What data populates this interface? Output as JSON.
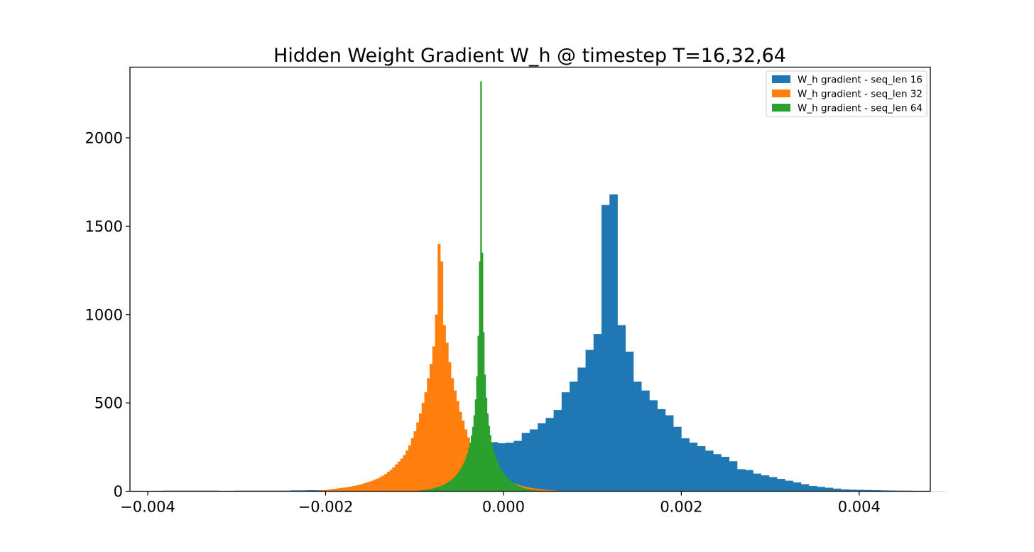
{
  "chart_data": {
    "type": "histogram",
    "title": "Hidden Weight Gradient W_h @ timestep T=16,32,64",
    "xlabel": "",
    "ylabel": "",
    "xlim": [
      -0.0042,
      0.0048
    ],
    "ylim": [
      0,
      2400
    ],
    "xticks": [
      -0.004,
      -0.002,
      0.0,
      0.002,
      0.004
    ],
    "xtick_labels": [
      "−0.004",
      "−0.002",
      "0.000",
      "0.002",
      "0.004"
    ],
    "yticks": [
      0,
      500,
      1000,
      1500,
      2000
    ],
    "ytick_labels": [
      "0",
      "500",
      "1000",
      "1500",
      "2000"
    ],
    "grid": false,
    "legend_position": "top-right",
    "series": [
      {
        "name": "W_h gradient - seq_len 16",
        "color": "#1f77b4",
        "bin_start": -0.0041,
        "bin_width": 8.97e-05,
        "counts": [
          1,
          0,
          1,
          3,
          3,
          3,
          3,
          3,
          3,
          3,
          2,
          2,
          3,
          3,
          3,
          3,
          3,
          3,
          3,
          5,
          5,
          6,
          6,
          6,
          7,
          9,
          12,
          15,
          20,
          25,
          30,
          38,
          45,
          55,
          65,
          75,
          82,
          87,
          100,
          140,
          160,
          140,
          180,
          225,
          278,
          272,
          275,
          285,
          330,
          350,
          385,
          415,
          460,
          560,
          620,
          700,
          800,
          890,
          1620,
          1680,
          940,
          790,
          620,
          570,
          515,
          465,
          430,
          365,
          300,
          275,
          255,
          230,
          210,
          195,
          170,
          125,
          120,
          100,
          90,
          80,
          70,
          60,
          50,
          40,
          30,
          25,
          20,
          15,
          11,
          9,
          8,
          7,
          6,
          5,
          4,
          3,
          3,
          2,
          2,
          1,
          1
        ]
      },
      {
        "name": "W_h gradient - seq_len 32",
        "color": "#ff7f0e",
        "bin_start": -0.00215,
        "bin_width": 3e-05,
        "counts": [
          2,
          3,
          4,
          5,
          6,
          8,
          10,
          12,
          14,
          16,
          18,
          20,
          22,
          24,
          27,
          30,
          33,
          36,
          40,
          45,
          50,
          55,
          60,
          66,
          72,
          80,
          88,
          98,
          110,
          122,
          136,
          152,
          168,
          185,
          205,
          230,
          260,
          300,
          340,
          390,
          440,
          500,
          560,
          640,
          720,
          820,
          1000,
          1400,
          1300,
          940,
          840,
          730,
          640,
          570,
          510,
          450,
          400,
          350,
          305,
          268,
          236,
          210,
          188,
          168,
          150,
          134,
          120,
          108,
          97,
          87,
          78,
          70,
          63,
          56,
          50,
          45,
          40,
          35,
          31,
          27,
          24,
          21,
          18,
          16,
          14,
          12,
          10,
          8,
          7,
          6,
          5,
          4
        ]
      },
      {
        "name": "W_h gradient - seq_len 64",
        "color": "#2ca02c",
        "bin_start": -0.00096,
        "bin_width": 1.52e-05,
        "counts": [
          3,
          4,
          5,
          6,
          7,
          8,
          9,
          10,
          12,
          13,
          15,
          17,
          19,
          21,
          23,
          26,
          29,
          32,
          35,
          39,
          43,
          48,
          53,
          58,
          64,
          70,
          77,
          85,
          94,
          104,
          115,
          127,
          140,
          155,
          172,
          192,
          215,
          242,
          275,
          315,
          365,
          430,
          520,
          650,
          880,
          1300,
          2320,
          1350,
          900,
          660,
          530,
          440,
          370,
          318,
          276,
          242,
          214,
          190,
          170,
          152,
          136,
          122,
          110,
          99,
          89,
          80,
          72,
          65,
          58,
          52,
          47,
          42,
          37,
          33,
          29,
          26,
          23,
          20,
          18,
          16,
          14,
          12,
          10,
          9,
          8,
          7,
          6,
          5,
          4,
          3,
          3,
          2
        ]
      }
    ]
  }
}
